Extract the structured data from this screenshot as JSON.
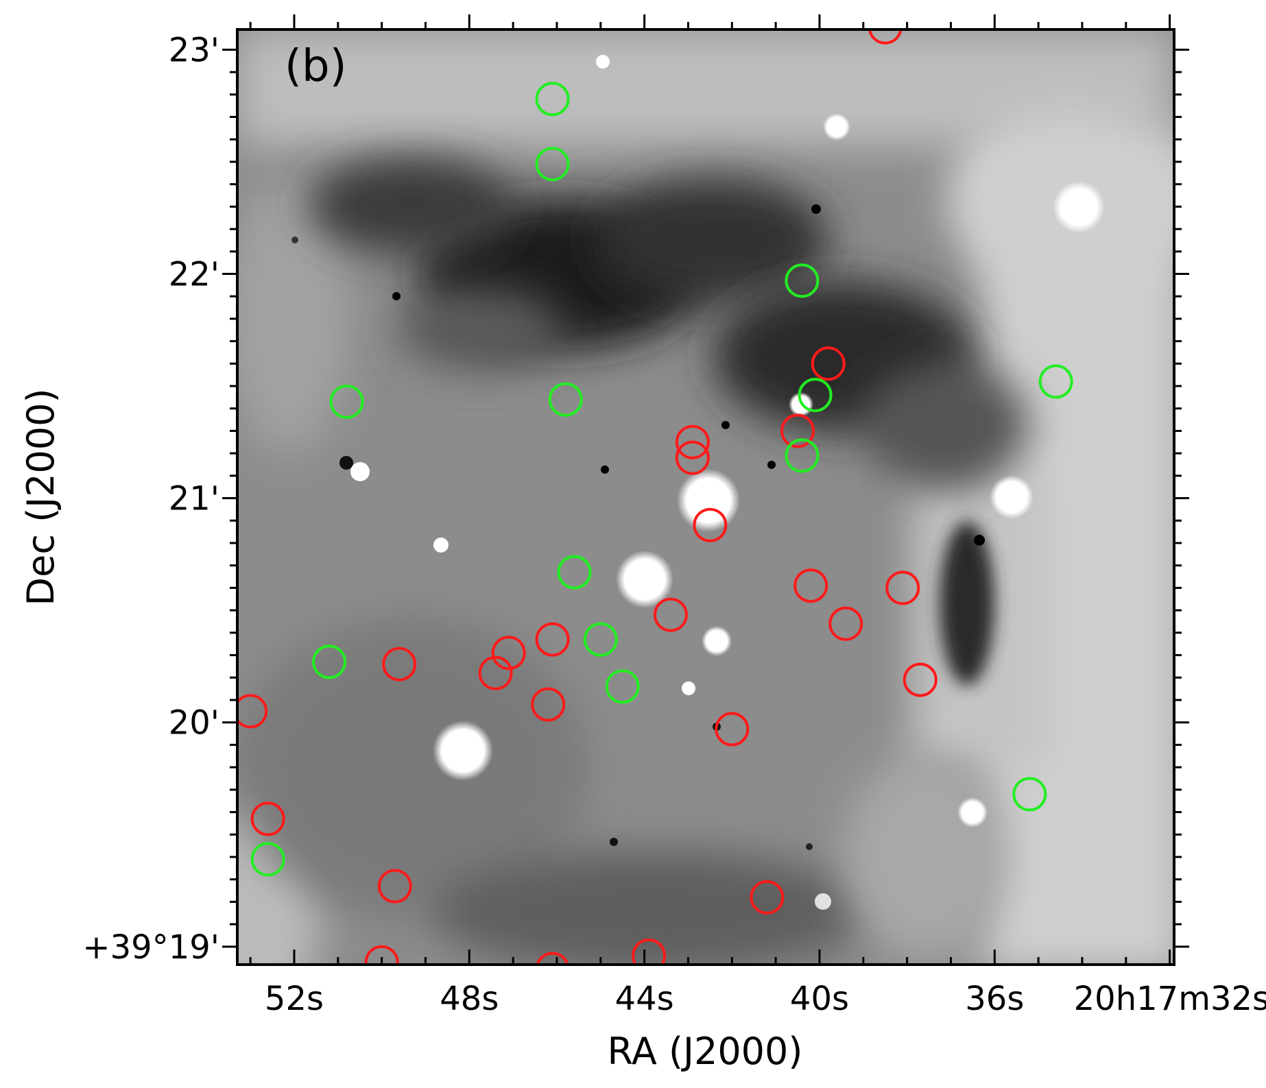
{
  "panel_label": "(b)",
  "xaxis": {
    "title": "RA (J2000)",
    "ticks": [
      {
        "label": "52s",
        "ra_s": 52
      },
      {
        "label": "48s",
        "ra_s": 48
      },
      {
        "label": "44s",
        "ra_s": 44
      },
      {
        "label": "40s",
        "ra_s": 40
      },
      {
        "label": "36s",
        "ra_s": 36
      },
      {
        "label": "20h17m32s",
        "ra_s": 32
      }
    ],
    "range_ra_s": [
      53.3,
      31.9
    ]
  },
  "yaxis": {
    "title": "Dec (J2000)",
    "ticks": [
      {
        "label": "23'",
        "dec_arcmin": 23
      },
      {
        "label": "22'",
        "dec_arcmin": 22
      },
      {
        "label": "21'",
        "dec_arcmin": 21
      },
      {
        "label": "20'",
        "dec_arcmin": 20
      },
      {
        "label": "+39°19'",
        "dec_arcmin": 19
      }
    ],
    "range_dec_arcmin": [
      18.92,
      23.09
    ]
  },
  "colors": {
    "red_marker": "#ff1a1a",
    "green_marker": "#22ee22",
    "frame": "#000000"
  },
  "chart_data": {
    "type": "scatter",
    "background": "grayscale-astronomical-image",
    "series": [
      {
        "color": "red",
        "points": [
          [
            38.5,
            23.1
          ],
          [
            39.8,
            21.6
          ],
          [
            40.5,
            21.3
          ],
          [
            42.9,
            21.25
          ],
          [
            42.9,
            21.18
          ],
          [
            42.5,
            20.88
          ],
          [
            40.2,
            20.61
          ],
          [
            38.1,
            20.6
          ],
          [
            43.4,
            20.48
          ],
          [
            39.4,
            20.44
          ],
          [
            46.1,
            20.37
          ],
          [
            47.1,
            20.31
          ],
          [
            47.4,
            20.22
          ],
          [
            49.6,
            20.26
          ],
          [
            37.7,
            20.19
          ],
          [
            46.2,
            20.08
          ],
          [
            53.0,
            20.05
          ],
          [
            42.0,
            19.97
          ],
          [
            52.6,
            19.57
          ],
          [
            49.7,
            19.27
          ],
          [
            41.2,
            19.22
          ],
          [
            43.9,
            18.96
          ],
          [
            50.0,
            18.93
          ],
          [
            46.1,
            18.9
          ]
        ]
      },
      {
        "color": "green",
        "points": [
          [
            46.1,
            22.78
          ],
          [
            46.1,
            22.49
          ],
          [
            40.4,
            21.97
          ],
          [
            34.6,
            21.52
          ],
          [
            40.1,
            21.46
          ],
          [
            50.8,
            21.43
          ],
          [
            45.8,
            21.44
          ],
          [
            40.4,
            21.19
          ],
          [
            45.6,
            20.67
          ],
          [
            45.0,
            20.37
          ],
          [
            51.2,
            20.27
          ],
          [
            44.5,
            20.16
          ],
          [
            35.2,
            19.68
          ],
          [
            52.6,
            19.39
          ]
        ]
      }
    ]
  }
}
